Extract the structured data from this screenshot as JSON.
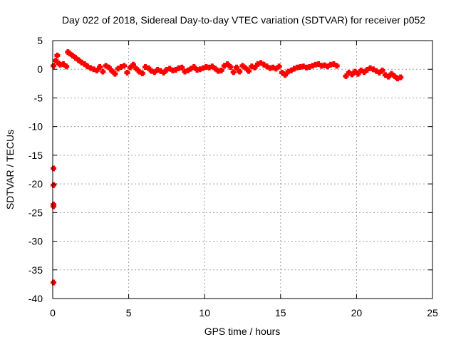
{
  "chart_data": {
    "type": "scatter",
    "title": "Day 022 of 2018, Sidereal Day-to-day VTEC variation (SDTVAR) for receiver p052",
    "xlabel": "GPS time / hours",
    "ylabel": "SDTVAR / TECUs",
    "xlim": [
      0,
      25
    ],
    "ylim": [
      -40,
      5
    ],
    "xticks": [
      0,
      5,
      10,
      15,
      20,
      25
    ],
    "yticks": [
      5,
      0,
      -5,
      -10,
      -15,
      -20,
      -25,
      -30,
      -35,
      -40
    ],
    "grid": true,
    "marker": "plus",
    "color": "#ff0000",
    "series": [
      {
        "x": [
          0.05,
          0.2,
          0.3,
          0.4,
          0.5,
          0.7,
          0.9,
          1.0,
          1.1,
          1.3,
          1.5,
          1.7,
          1.9,
          2.1,
          2.3,
          2.5,
          2.7,
          2.9,
          3.1,
          3.3,
          3.5,
          3.7,
          3.9,
          4.1,
          4.3,
          4.5,
          4.7,
          4.9,
          5.1,
          5.3,
          5.5,
          5.7,
          5.9,
          6.1,
          6.3,
          6.5,
          6.7,
          6.9,
          7.1,
          7.3,
          7.5,
          7.7,
          7.9,
          8.1,
          8.3,
          8.5,
          8.7,
          8.9,
          9.1,
          9.3,
          9.5,
          9.7,
          9.9,
          10.1,
          10.3,
          10.5,
          10.7,
          10.9,
          11.1,
          11.3,
          11.5,
          11.7,
          11.9,
          12.1,
          12.3,
          12.5,
          12.7,
          12.9,
          13.1,
          13.3,
          13.5,
          13.7,
          13.9,
          14.1,
          14.3,
          14.5,
          14.7,
          14.9,
          15.1,
          15.3,
          15.5,
          15.7,
          15.9,
          16.1,
          16.3,
          16.5,
          16.7,
          16.9,
          17.1,
          17.3,
          17.5,
          17.7,
          17.9,
          18.1,
          18.3,
          18.5,
          18.7,
          19.3,
          19.5,
          19.7,
          19.9,
          20.1,
          20.3,
          20.5,
          20.7,
          20.9,
          21.1,
          21.3,
          21.5,
          21.7,
          21.9,
          22.1,
          22.3,
          22.5,
          22.7,
          22.9
        ],
        "y": [
          0.6,
          1.5,
          2.4,
          1.0,
          0.8,
          0.9,
          0.5,
          3.0,
          2.8,
          2.4,
          2.0,
          1.6,
          1.2,
          0.9,
          0.5,
          0.2,
          0.0,
          -0.2,
          0.4,
          -0.4,
          0.6,
          0.3,
          -0.3,
          -0.8,
          0.1,
          0.4,
          0.6,
          -0.6,
          0.3,
          0.8,
          0.1,
          -0.4,
          -0.7,
          0.4,
          0.2,
          -0.3,
          -0.5,
          -0.1,
          -0.3,
          -0.6,
          -0.1,
          0.1,
          -0.2,
          -0.1,
          0.2,
          0.3,
          -0.4,
          -0.2,
          0.1,
          0.4,
          -0.1,
          0.0,
          0.2,
          0.4,
          0.3,
          0.5,
          0.1,
          -0.3,
          -0.2,
          0.6,
          0.9,
          0.4,
          -0.5,
          0.3,
          -0.4,
          0.6,
          0.2,
          -0.3,
          0.5,
          0.3,
          0.9,
          1.1,
          0.8,
          0.5,
          0.2,
          0.3,
          0.1,
          0.5,
          -0.6,
          -1.0,
          -0.4,
          -0.2,
          0.1,
          0.3,
          0.4,
          0.5,
          0.3,
          0.4,
          0.6,
          0.8,
          0.9,
          0.6,
          0.7,
          0.5,
          0.8,
          0.9,
          0.6,
          -1.2,
          -0.6,
          -0.9,
          -0.4,
          -0.8,
          -0.2,
          -0.5,
          -0.1,
          0.2,
          0.0,
          -0.3,
          -0.6,
          -0.2,
          -1.0,
          -1.3,
          -0.8,
          -1.2,
          -1.6,
          -1.4
        ]
      },
      {
        "x": [
          0.05,
          0.05,
          0.05,
          0.05,
          0.05
        ],
        "y": [
          -17.3,
          -20.2,
          -23.6,
          -23.9,
          -37.2
        ]
      }
    ]
  }
}
